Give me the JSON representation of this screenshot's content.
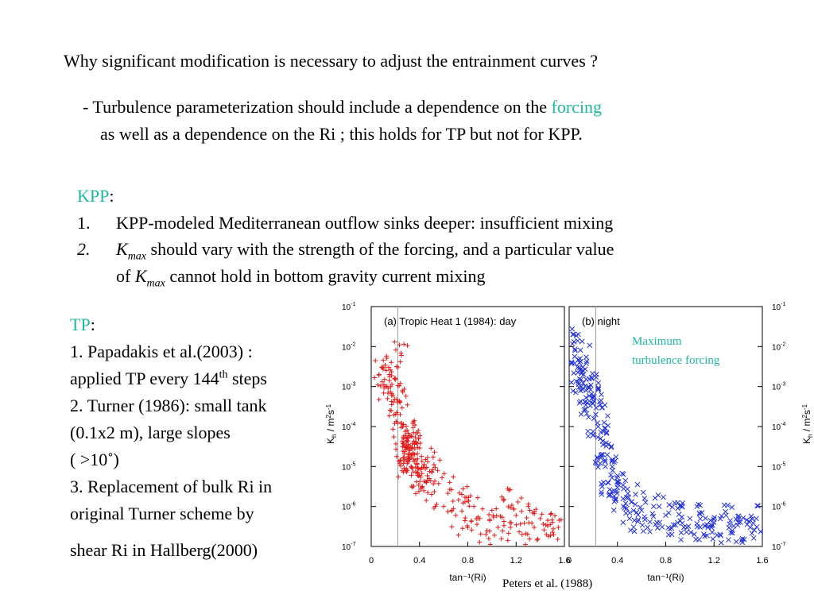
{
  "slide": {
    "title": "Why significant modification is necessary to adjust the entrainment curves ?",
    "bullet_line1_pre": "- Turbulence parameterization should include a dependence on the ",
    "bullet_line1_forcing": "forcing",
    "bullet_line2": "as well as a dependence on the Ri ;  this holds for TP but not for KPP.",
    "kpp_label": "KPP",
    "kpp_colon": ":",
    "kpp_item1_num": "1.",
    "kpp_item1_text": "KPP-modeled Mediterranean outflow sinks deeper: insufficient mixing",
    "kpp_item2_num": "2.",
    "kmax_K": "K",
    "kmax_sub": "max",
    "kpp_item2_text": " should vary with the strength of the forcing, and a particular value",
    "kpp_item2_line2_pre": "of ",
    "kpp_item2_line2_post": " cannot hold in bottom gravity current mixing",
    "tp_label": "TP",
    "tp_colon": ":",
    "tp_line1": "1.    Papadakis et al.(2003) :",
    "tp_line2_pre": "applied TP every 144",
    "tp_line2_sup": "th",
    "tp_line2_post": " steps",
    "tp_line3": "2. Turner (1986): small tank",
    "tp_line4": "(0.1x2 m), large slopes",
    "tp_line5": "( >10˚)",
    "tp_line6": "3. Replacement of bulk Ri in",
    "tp_line7": "original Turner scheme by",
    "tp_line8": "shear Ri in Hallberg(2000)"
  },
  "figure": {
    "annotation_line1": "Maximum",
    "annotation_line2": "turbulence forcing",
    "caption": "Peters et al. (1988)",
    "colors": {
      "day": "#e11b1b",
      "night": "#2433d6",
      "annotation": "#1fb8a0"
    }
  },
  "chart_data": [
    {
      "type": "scatter",
      "title": "(a) Tropic Heat 1 (1984): day",
      "xlabel": "tan⁻¹(Ri)",
      "ylabel": "K_h / m²s⁻¹",
      "yscale": "log",
      "xlim": [
        0,
        1.6
      ],
      "ylim": [
        1e-07,
        0.1
      ],
      "x_ticks": [
        "0",
        "0.4",
        "0.8",
        "1.2",
        "1.6"
      ],
      "y_ticks": [
        "10⁻⁷",
        "10⁻⁶",
        "10⁻⁵",
        "10⁻⁴",
        "10⁻³",
        "10⁻²",
        "10⁻¹"
      ],
      "reference_line_x": 0.22,
      "marker": "+",
      "color": "#e11b1b",
      "points": [
        [
          0.1,
          0.003
        ],
        [
          0.12,
          0.001
        ],
        [
          0.15,
          0.002
        ],
        [
          0.18,
          0.0006
        ],
        [
          0.2,
          0.0015
        ],
        [
          0.22,
          0.0004
        ],
        [
          0.24,
          0.0002
        ],
        [
          0.25,
          0.006
        ],
        [
          0.26,
          0.0001
        ],
        [
          0.27,
          5e-05
        ],
        [
          0.28,
          3e-05
        ],
        [
          0.29,
          1.5e-05
        ],
        [
          0.3,
          8e-06
        ],
        [
          0.31,
          2e-05
        ],
        [
          0.32,
          6e-05
        ],
        [
          0.33,
          1e-05
        ],
        [
          0.34,
          3e-05
        ],
        [
          0.35,
          7e-05
        ],
        [
          0.36,
          2e-05
        ],
        [
          0.37,
          4e-05
        ],
        [
          0.38,
          1.2e-05
        ],
        [
          0.4,
          6e-06
        ],
        [
          0.42,
          3e-06
        ],
        [
          0.45,
          1.5e-05
        ],
        [
          0.48,
          5e-06
        ],
        [
          0.5,
          2e-06
        ],
        [
          0.55,
          8e-06
        ],
        [
          0.6,
          1e-06
        ],
        [
          0.65,
          4e-06
        ],
        [
          0.7,
          6e-07
        ],
        [
          0.75,
          2e-06
        ],
        [
          0.8,
          3e-07
        ],
        [
          0.85,
          1e-06
        ],
        [
          0.9,
          5e-07
        ],
        [
          0.95,
          2e-07
        ],
        [
          1.0,
          8e-07
        ],
        [
          1.05,
          3e-07
        ],
        [
          1.1,
          1.5e-06
        ],
        [
          1.15,
          4e-07
        ],
        [
          1.2,
          6e-07
        ],
        [
          1.25,
          2e-07
        ],
        [
          1.3,
          1e-06
        ],
        [
          1.35,
          3e-07
        ],
        [
          1.4,
          5e-07
        ],
        [
          1.45,
          2e-07
        ],
        [
          1.5,
          4e-07
        ],
        [
          1.55,
          3e-07
        ]
      ]
    },
    {
      "type": "scatter",
      "title": "(b) night",
      "xlabel": "tan⁻¹(Ri)",
      "ylabel": "K_h / m²s⁻¹",
      "yscale": "log",
      "xlim": [
        0,
        1.6
      ],
      "ylim": [
        1e-07,
        0.1
      ],
      "x_ticks": [
        "0",
        "0.4",
        "0.8",
        "1.2",
        "1.6"
      ],
      "y_ticks": [
        "10⁻⁷",
        "10⁻⁶",
        "10⁻⁵",
        "10⁻⁴",
        "10⁻³",
        "10⁻²",
        "10⁻¹"
      ],
      "reference_line_x": 0.22,
      "marker": "x",
      "color": "#2433d6",
      "points": [
        [
          0.03,
          0.02
        ],
        [
          0.05,
          0.008
        ],
        [
          0.07,
          0.003
        ],
        [
          0.09,
          0.005
        ],
        [
          0.1,
          0.0015
        ],
        [
          0.12,
          0.002
        ],
        [
          0.14,
          0.0008
        ],
        [
          0.16,
          0.001
        ],
        [
          0.18,
          0.0004
        ],
        [
          0.2,
          0.0006
        ],
        [
          0.22,
          0.0002
        ],
        [
          0.24,
          0.0001
        ],
        [
          0.26,
          5e-05
        ],
        [
          0.28,
          2e-05
        ],
        [
          0.3,
          1e-05
        ],
        [
          0.32,
          4e-06
        ],
        [
          0.34,
          2e-06
        ],
        [
          0.36,
          8e-06
        ],
        [
          0.4,
          3e-06
        ],
        [
          0.45,
          1e-06
        ],
        [
          0.5,
          5e-07
        ],
        [
          0.55,
          2e-06
        ],
        [
          0.6,
          8e-07
        ],
        [
          0.65,
          3e-07
        ],
        [
          0.7,
          1e-06
        ],
        [
          0.75,
          4e-07
        ],
        [
          0.8,
          6e-07
        ],
        [
          0.85,
          2e-07
        ],
        [
          0.9,
          9e-07
        ],
        [
          0.95,
          3e-07
        ],
        [
          1.0,
          5e-07
        ],
        [
          1.05,
          1.5e-07
        ],
        [
          1.1,
          7e-07
        ],
        [
          1.15,
          3e-07
        ],
        [
          1.2,
          4e-07
        ],
        [
          1.25,
          2e-07
        ],
        [
          1.3,
          6e-07
        ],
        [
          1.35,
          2.5e-07
        ],
        [
          1.4,
          4e-07
        ],
        [
          1.45,
          1.5e-07
        ],
        [
          1.5,
          3e-07
        ],
        [
          1.55,
          5e-07
        ]
      ]
    }
  ]
}
